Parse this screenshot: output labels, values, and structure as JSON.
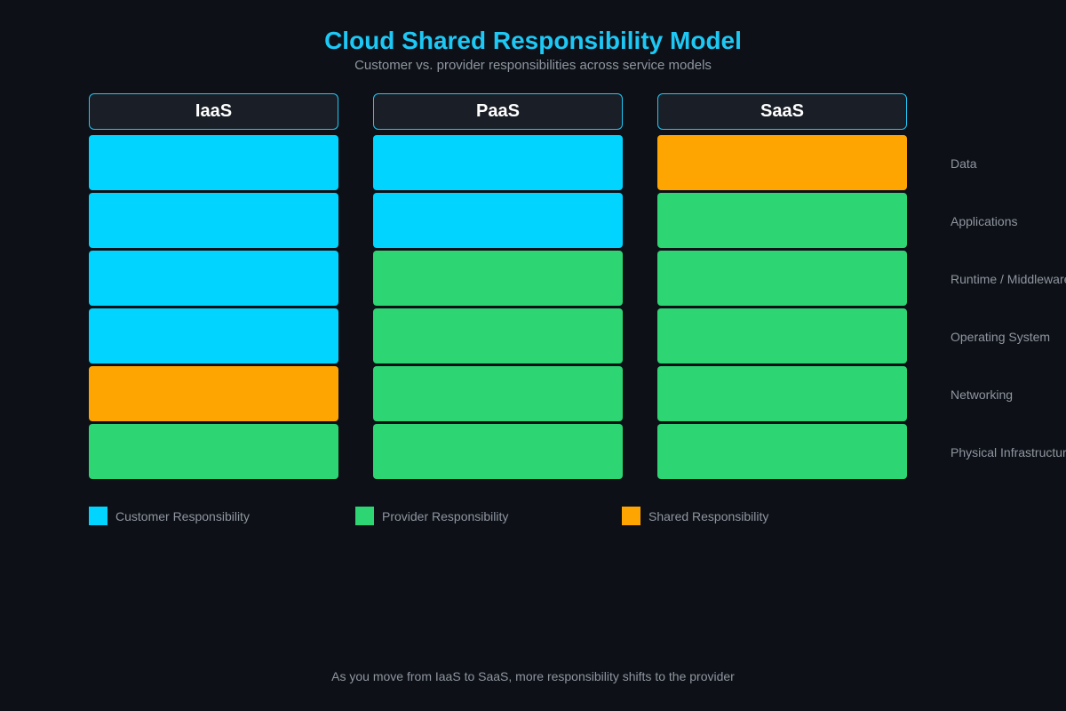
{
  "title": "Cloud Shared Responsibility Model",
  "subtitle": "Customer vs. provider responsibilities across service models",
  "models": [
    "IaaS",
    "PaaS",
    "SaaS"
  ],
  "layers": [
    "Data",
    "Applications",
    "Runtime / Middleware",
    "Operating System",
    "Networking",
    "Physical Infrastructure"
  ],
  "matrix": [
    [
      "customer",
      "customer",
      "customer",
      "customer",
      "shared",
      "provider"
    ],
    [
      "customer",
      "customer",
      "provider",
      "provider",
      "provider",
      "provider"
    ],
    [
      "shared",
      "provider",
      "provider",
      "provider",
      "provider",
      "provider"
    ]
  ],
  "legend": [
    {
      "key": "customer",
      "label": "Customer Responsibility",
      "color": "#00d4ff"
    },
    {
      "key": "provider",
      "label": "Provider Responsibility",
      "color": "#2ed573"
    },
    {
      "key": "shared",
      "label": "Shared Responsibility",
      "color": "#ffa502"
    }
  ],
  "footer_note": "As you move from IaaS to SaaS, more responsibility shifts to the provider",
  "colors": {
    "background": "#0d1017",
    "accent": "#1ec8f5",
    "customer": "#00d4ff",
    "provider": "#2ed573",
    "shared": "#ffa502",
    "header_fill": "#1a1e26"
  }
}
